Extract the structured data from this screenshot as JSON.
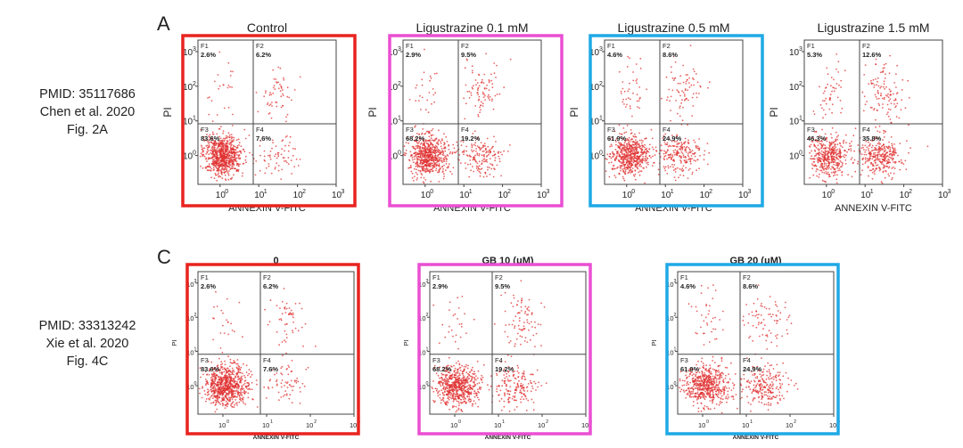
{
  "figure_a": {
    "label": "A",
    "citation": {
      "line1": "PMID: 35117686",
      "line2": "Chen et al. 2020",
      "line3": "Fig. 2A"
    },
    "x_axis_label": "ANNEXIN V-FITC",
    "y_axis_label": "PI",
    "x_ticks": [
      "10",
      "10",
      "10",
      "10"
    ],
    "x_tick_exponents": [
      "0",
      "1",
      "2",
      "3"
    ],
    "y_ticks": [
      "10",
      "10",
      "10",
      "10"
    ],
    "y_tick_exponents": [
      "0",
      "1",
      "2",
      "3"
    ],
    "panels": [
      {
        "title": "Control",
        "q1": "2.6%",
        "q2": "6.2%",
        "q3": "83.6%",
        "q4": "7.6%"
      },
      {
        "title": "Ligustrazine 0.1 mM",
        "q1": "2.9%",
        "q2": "9.5%",
        "q3": "68.2%",
        "q4": "19.2%"
      },
      {
        "title": "Ligustrazine 0.5 mM",
        "q1": "4.6%",
        "q2": "8.6%",
        "q3": "61.9%",
        "q4": "24.9%"
      },
      {
        "title": "Ligustrazine 1.5 mM",
        "q1": "5.3%",
        "q2": "12.6%",
        "q3": "46.3%",
        "q4": "35.8%"
      }
    ]
  },
  "figure_c": {
    "label": "C",
    "citation": {
      "line1": "PMID: 33313242",
      "line2": "Xie et al. 2020",
      "line3": "Fig. 4C"
    },
    "x_axis_label": "ANNEXIN V-FITC",
    "y_axis_label": "PI",
    "panels": [
      {
        "title": "0",
        "q1": "2.6%",
        "q2": "6.2%",
        "q3": "83.6%",
        "q4": "7.6%"
      },
      {
        "title": "GB 10 (μM)",
        "q1": "2.9%",
        "q2": "9.5%",
        "q3": "68.2%",
        "q4": "19.2%"
      },
      {
        "title": "GB 20 (μM)",
        "q1": "4.6%",
        "q2": "8.6%",
        "q3": "61.9%",
        "q4": "24.9%"
      }
    ]
  },
  "quadrant_labels": [
    "F1",
    "F2",
    "F3",
    "F4"
  ],
  "highlight_colors": [
    "#e8231f",
    "#ea4fd2",
    "#1fa9e6"
  ],
  "dot_color": "#e03030",
  "chart_data": [
    {
      "type": "scatter",
      "title": "Control",
      "xlabel": "ANNEXIN V-FITC",
      "ylabel": "PI",
      "x_scale": "log",
      "y_scale": "log",
      "xlim": [
        0.1,
        1000
      ],
      "ylim": [
        0.1,
        1000
      ],
      "quadrants": {
        "F1": 2.6,
        "F2": 6.2,
        "F3": 83.6,
        "F4": 7.6
      }
    },
    {
      "type": "scatter",
      "title": "Ligustrazine 0.1 mM",
      "xlabel": "ANNEXIN V-FITC",
      "ylabel": "PI",
      "x_scale": "log",
      "y_scale": "log",
      "xlim": [
        0.1,
        1000
      ],
      "ylim": [
        0.1,
        1000
      ],
      "quadrants": {
        "F1": 2.9,
        "F2": 9.5,
        "F3": 68.2,
        "F4": 19.2
      }
    },
    {
      "type": "scatter",
      "title": "Ligustrazine 0.5 mM",
      "xlabel": "ANNEXIN V-FITC",
      "ylabel": "PI",
      "x_scale": "log",
      "y_scale": "log",
      "xlim": [
        0.1,
        1000
      ],
      "ylim": [
        0.1,
        1000
      ],
      "quadrants": {
        "F1": 4.6,
        "F2": 8.6,
        "F3": 61.9,
        "F4": 24.9
      }
    },
    {
      "type": "scatter",
      "title": "Ligustrazine 1.5 mM",
      "xlabel": "ANNEXIN V-FITC",
      "ylabel": "PI",
      "x_scale": "log",
      "y_scale": "log",
      "xlim": [
        0.1,
        1000
      ],
      "ylim": [
        0.1,
        1000
      ],
      "quadrants": {
        "F1": 5.3,
        "F2": 12.6,
        "F3": 46.3,
        "F4": 35.8
      }
    },
    {
      "type": "scatter",
      "title": "0",
      "xlabel": "ANNEXIN V-FITC",
      "ylabel": "PI",
      "x_scale": "log",
      "y_scale": "log",
      "xlim": [
        0.1,
        1000
      ],
      "ylim": [
        0.1,
        1000
      ],
      "quadrants": {
        "F1": 2.6,
        "F2": 6.2,
        "F3": 83.6,
        "F4": 7.6
      }
    },
    {
      "type": "scatter",
      "title": "GB 10 (μM)",
      "xlabel": "ANNEXIN V-FITC",
      "ylabel": "PI",
      "x_scale": "log",
      "y_scale": "log",
      "xlim": [
        0.1,
        1000
      ],
      "ylim": [
        0.1,
        1000
      ],
      "quadrants": {
        "F1": 2.9,
        "F2": 9.5,
        "F3": 68.2,
        "F4": 19.2
      }
    },
    {
      "type": "scatter",
      "title": "GB 20 (μM)",
      "xlabel": "ANNEXIN V-FITC",
      "ylabel": "PI",
      "x_scale": "log",
      "y_scale": "log",
      "xlim": [
        0.1,
        1000
      ],
      "ylim": [
        0.1,
        1000
      ],
      "quadrants": {
        "F1": 4.6,
        "F2": 8.6,
        "F3": 61.9,
        "F4": 24.9
      }
    }
  ]
}
